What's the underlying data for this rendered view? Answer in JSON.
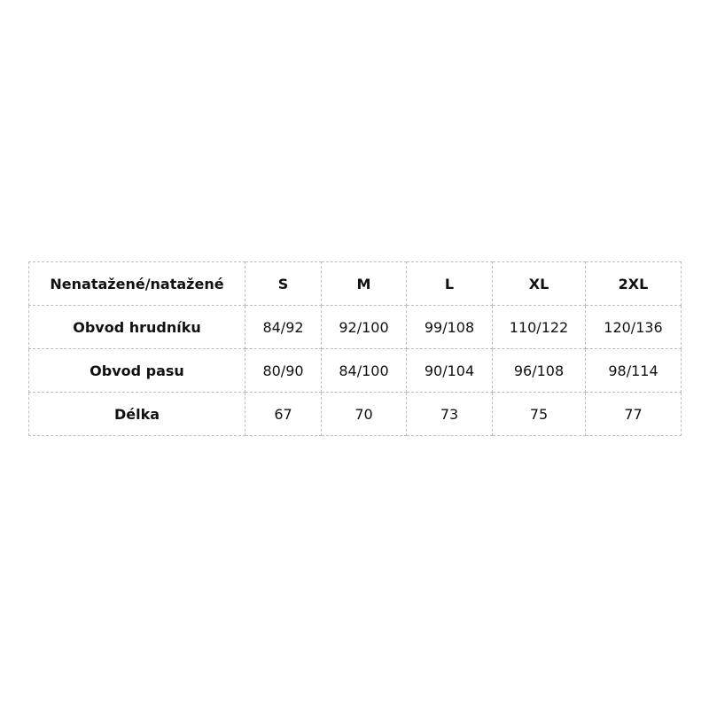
{
  "table": {
    "header": [
      "Nenatažené/natažené",
      "S",
      "M",
      "L",
      "XL",
      "2XL"
    ],
    "rows": [
      [
        "Obvod hrudníku",
        "84/92",
        "92/100",
        "99/108",
        "110/122",
        "120/136"
      ],
      [
        "Obvod pasu",
        "80/90",
        "84/100",
        "90/104",
        "96/108",
        "98/114"
      ],
      [
        "Délka",
        "67",
        "70",
        "73",
        "75",
        "77"
      ]
    ]
  }
}
